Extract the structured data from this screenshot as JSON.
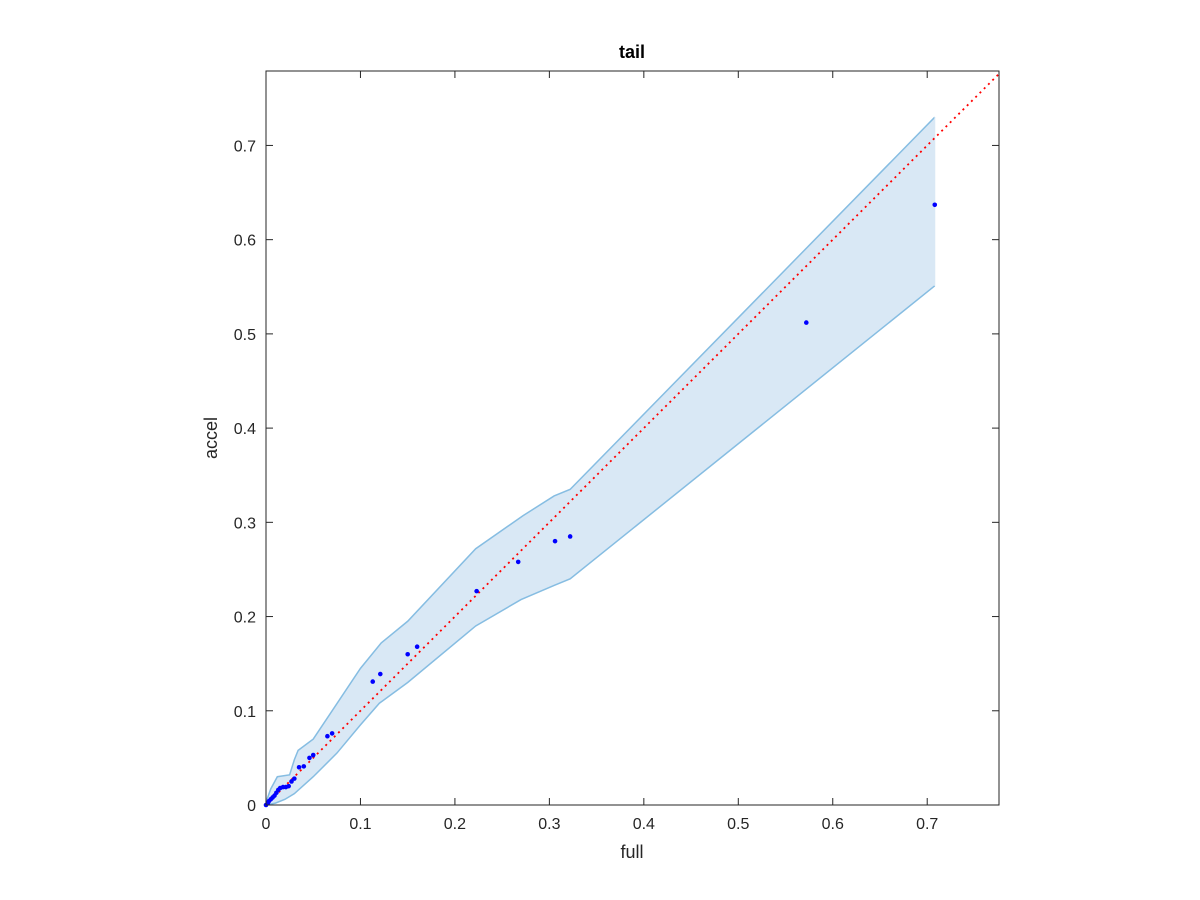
{
  "chart_data": {
    "type": "scatter",
    "title": "tail",
    "xlabel": "full",
    "ylabel": "accel",
    "xlim": [
      0,
      0.776
    ],
    "ylim": [
      0,
      0.779
    ],
    "xticks": [
      "0",
      "0.1",
      "0.2",
      "0.3",
      "0.4",
      "0.5",
      "0.6",
      "0.7"
    ],
    "yticks": [
      "0",
      "0.1",
      "0.2",
      "0.3",
      "0.4",
      "0.5",
      "0.6",
      "0.7"
    ],
    "grid": false,
    "points": [
      [
        0.0,
        0.0
      ],
      [
        0.002,
        0.002
      ],
      [
        0.003,
        0.004
      ],
      [
        0.005,
        0.006
      ],
      [
        0.007,
        0.008
      ],
      [
        0.009,
        0.01
      ],
      [
        0.011,
        0.013
      ],
      [
        0.013,
        0.016
      ],
      [
        0.015,
        0.018
      ],
      [
        0.018,
        0.019
      ],
      [
        0.021,
        0.019
      ],
      [
        0.024,
        0.02
      ],
      [
        0.027,
        0.025
      ],
      [
        0.03,
        0.028
      ],
      [
        0.035,
        0.04
      ],
      [
        0.04,
        0.041
      ],
      [
        0.046,
        0.05
      ],
      [
        0.05,
        0.053
      ],
      [
        0.065,
        0.073
      ],
      [
        0.07,
        0.076
      ],
      [
        0.113,
        0.131
      ],
      [
        0.121,
        0.139
      ],
      [
        0.15,
        0.16
      ],
      [
        0.16,
        0.168
      ],
      [
        0.223,
        0.227
      ],
      [
        0.267,
        0.258
      ],
      [
        0.306,
        0.28
      ],
      [
        0.322,
        0.285
      ],
      [
        0.572,
        0.512
      ],
      [
        0.708,
        0.637
      ]
    ],
    "band": {
      "upper": [
        [
          0.0,
          0.003
        ],
        [
          0.005,
          0.017
        ],
        [
          0.012,
          0.03
        ],
        [
          0.025,
          0.032
        ],
        [
          0.03,
          0.048
        ],
        [
          0.034,
          0.058
        ],
        [
          0.05,
          0.07
        ],
        [
          0.07,
          0.1
        ],
        [
          0.1,
          0.145
        ],
        [
          0.122,
          0.172
        ],
        [
          0.15,
          0.195
        ],
        [
          0.222,
          0.272
        ],
        [
          0.272,
          0.307
        ],
        [
          0.305,
          0.328
        ],
        [
          0.322,
          0.335
        ],
        [
          0.708,
          0.73
        ]
      ],
      "lower": [
        [
          0.0,
          0.0
        ],
        [
          0.01,
          0.002
        ],
        [
          0.02,
          0.006
        ],
        [
          0.03,
          0.012
        ],
        [
          0.05,
          0.03
        ],
        [
          0.075,
          0.055
        ],
        [
          0.1,
          0.085
        ],
        [
          0.12,
          0.108
        ],
        [
          0.15,
          0.13
        ],
        [
          0.222,
          0.19
        ],
        [
          0.27,
          0.218
        ],
        [
          0.305,
          0.233
        ],
        [
          0.322,
          0.24
        ],
        [
          0.708,
          0.551
        ]
      ]
    },
    "reference_line": {
      "from": [
        0,
        0
      ],
      "to": [
        0.776,
        0.776
      ],
      "style": "dotted"
    },
    "colors": {
      "points": "#0000ff",
      "band_fill": "#d9e8f5",
      "band_edge": "#86bde2",
      "reference": "#ff0000",
      "axes": "#262626"
    }
  }
}
